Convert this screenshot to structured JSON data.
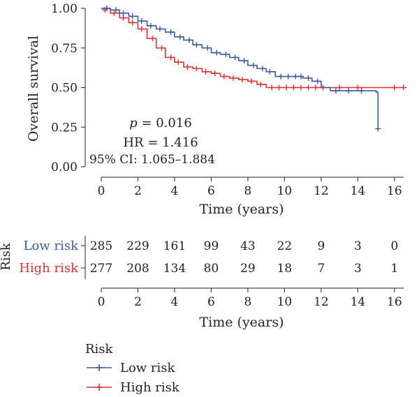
{
  "chart_data": {
    "type": "line",
    "subtype": "kaplan-meier",
    "ylabel": "Overall survival",
    "xlabel": "Time (years)",
    "xlim": [
      -1,
      16.5
    ],
    "ylim": [
      0,
      1.0
    ],
    "xticks": [
      0,
      2,
      4,
      6,
      8,
      10,
      12,
      14,
      16
    ],
    "yticks": [
      "0.00",
      "0.25",
      "0.50",
      "0.75",
      "1.00"
    ],
    "annotations": {
      "p_prefix": "p",
      "p_value": " = 0.016",
      "hr": "HR = 1.416",
      "ci": "95% CI: 1.065–1.884"
    },
    "series": [
      {
        "name": "Low risk",
        "color": "#3a5aa0",
        "steps": [
          [
            0,
            1.0
          ],
          [
            0.5,
            0.99
          ],
          [
            1,
            0.97
          ],
          [
            1.5,
            0.95
          ],
          [
            2,
            0.92
          ],
          [
            2.5,
            0.89
          ],
          [
            3,
            0.87
          ],
          [
            3.5,
            0.85
          ],
          [
            4,
            0.82
          ],
          [
            4.5,
            0.8
          ],
          [
            5,
            0.77
          ],
          [
            5.5,
            0.75
          ],
          [
            6,
            0.72
          ],
          [
            6.5,
            0.71
          ],
          [
            7,
            0.69
          ],
          [
            7.5,
            0.67
          ],
          [
            8,
            0.64
          ],
          [
            8.5,
            0.62
          ],
          [
            9,
            0.6
          ],
          [
            9.5,
            0.57
          ],
          [
            11,
            0.56
          ],
          [
            11.5,
            0.54
          ],
          [
            12,
            0.5
          ],
          [
            12.5,
            0.48
          ],
          [
            15,
            0.47
          ],
          [
            15.1,
            0.24
          ]
        ],
        "censors": [
          [
            0.3,
            1.0
          ],
          [
            0.8,
            0.99
          ],
          [
            1.2,
            0.97
          ],
          [
            1.7,
            0.95
          ],
          [
            2.2,
            0.92
          ],
          [
            2.7,
            0.89
          ],
          [
            3.2,
            0.87
          ],
          [
            3.8,
            0.85
          ],
          [
            4.3,
            0.82
          ],
          [
            4.8,
            0.8
          ],
          [
            5.2,
            0.77
          ],
          [
            5.8,
            0.75
          ],
          [
            6.3,
            0.72
          ],
          [
            6.8,
            0.71
          ],
          [
            7.3,
            0.69
          ],
          [
            7.8,
            0.67
          ],
          [
            8.3,
            0.64
          ],
          [
            8.8,
            0.62
          ],
          [
            9.2,
            0.6
          ],
          [
            9.8,
            0.57
          ],
          [
            10.2,
            0.57
          ],
          [
            10.6,
            0.57
          ],
          [
            10.9,
            0.57
          ],
          [
            11.3,
            0.56
          ],
          [
            11.8,
            0.54
          ],
          [
            12.8,
            0.48
          ],
          [
            13.5,
            0.48
          ],
          [
            14.2,
            0.48
          ],
          [
            15.1,
            0.24
          ]
        ]
      },
      {
        "name": "High risk",
        "color": "#e03030",
        "steps": [
          [
            0,
            1.0
          ],
          [
            0.5,
            0.97
          ],
          [
            1,
            0.94
          ],
          [
            1.5,
            0.91
          ],
          [
            2,
            0.87
          ],
          [
            2.5,
            0.81
          ],
          [
            3,
            0.75
          ],
          [
            3.5,
            0.69
          ],
          [
            4,
            0.66
          ],
          [
            4.5,
            0.63
          ],
          [
            5,
            0.62
          ],
          [
            5.5,
            0.6
          ],
          [
            6,
            0.59
          ],
          [
            6.5,
            0.57
          ],
          [
            7,
            0.56
          ],
          [
            7.5,
            0.55
          ],
          [
            8,
            0.54
          ],
          [
            8.5,
            0.52
          ],
          [
            9,
            0.5
          ],
          [
            11.5,
            0.5
          ],
          [
            12,
            0.5
          ],
          [
            16.5,
            0.5
          ]
        ],
        "censors": [
          [
            0.2,
            0.99
          ],
          [
            0.7,
            0.97
          ],
          [
            1.2,
            0.94
          ],
          [
            1.7,
            0.91
          ],
          [
            2.2,
            0.87
          ],
          [
            2.8,
            0.81
          ],
          [
            3.3,
            0.75
          ],
          [
            3.8,
            0.69
          ],
          [
            4.2,
            0.66
          ],
          [
            4.7,
            0.63
          ],
          [
            5.2,
            0.62
          ],
          [
            5.7,
            0.6
          ],
          [
            6.2,
            0.59
          ],
          [
            6.7,
            0.57
          ],
          [
            7.2,
            0.56
          ],
          [
            7.7,
            0.55
          ],
          [
            8.2,
            0.54
          ],
          [
            8.7,
            0.52
          ],
          [
            9.3,
            0.5
          ],
          [
            9.7,
            0.5
          ],
          [
            10.1,
            0.5
          ],
          [
            10.5,
            0.5
          ],
          [
            10.9,
            0.5
          ],
          [
            11.3,
            0.5
          ],
          [
            11.7,
            0.5
          ],
          [
            12.1,
            0.5
          ],
          [
            13,
            0.5
          ],
          [
            14,
            0.5
          ],
          [
            16,
            0.5
          ],
          [
            16.5,
            0.5
          ]
        ]
      }
    ],
    "risk_table": {
      "title": "Risk",
      "times": [
        0,
        2,
        4,
        6,
        8,
        10,
        12,
        14,
        16
      ],
      "xlabel": "Time (years)",
      "rows": [
        {
          "label": "Low risk",
          "color": "#3a5aa0",
          "counts": [
            285,
            229,
            161,
            99,
            43,
            22,
            9,
            3,
            0
          ]
        },
        {
          "label": "High risk",
          "color": "#e03030",
          "counts": [
            277,
            208,
            134,
            80,
            29,
            18,
            7,
            3,
            1
          ]
        }
      ]
    },
    "legend": {
      "title": "Risk",
      "placement": "bottom-left",
      "items": [
        {
          "label": "Low risk",
          "color": "#3a5aa0"
        },
        {
          "label": "High risk",
          "color": "#e03030"
        }
      ]
    }
  }
}
